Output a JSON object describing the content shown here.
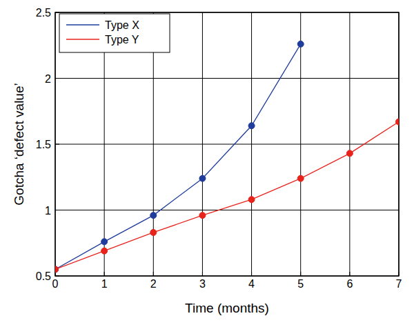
{
  "chart_data": {
    "type": "line",
    "x_label": "Time (months)",
    "y_label": "Gotcha ‘defect value’",
    "x": [
      0,
      1,
      2,
      3,
      4,
      5,
      6,
      7
    ],
    "series": [
      {
        "name": "Type X",
        "color": "#1f3c9c",
        "marker": "circle",
        "values": [
          0.55,
          0.76,
          0.96,
          1.24,
          1.64,
          2.26,
          null,
          null
        ]
      },
      {
        "name": "Type Y",
        "color": "#e8231b",
        "marker": "circle",
        "values": [
          0.55,
          0.69,
          0.83,
          0.96,
          1.08,
          1.24,
          1.43,
          1.67
        ]
      }
    ],
    "xlim": [
      0,
      7
    ],
    "xticks": [
      0,
      1,
      2,
      3,
      4,
      5,
      6,
      7
    ],
    "ylim": [
      0.5,
      2.5
    ],
    "yticks": [
      0.5,
      1,
      1.5,
      2,
      2.5
    ],
    "grid": true,
    "legend": "upper left"
  }
}
